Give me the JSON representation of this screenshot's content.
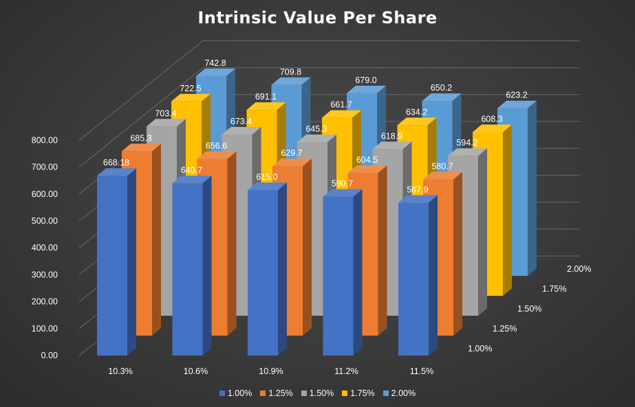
{
  "chart_data": {
    "type": "bar",
    "title": "Intrinsic Value Per Share",
    "categories": [
      "10.3%",
      "10.6%",
      "10.9%",
      "11.2%",
      "11.5%"
    ],
    "series": [
      {
        "name": "1.00%",
        "values": [
          668.18,
          640.7,
          615.0,
          590.7,
          567.9
        ],
        "labels": [
          "668.18",
          "640.7",
          "615.0",
          "590.7",
          "567.9"
        ],
        "color": "#4472c4"
      },
      {
        "name": "1.25%",
        "values": [
          685.3,
          656.6,
          629.7,
          604.5,
          580.7
        ],
        "labels": [
          "685.3",
          "656.6",
          "629.7",
          "604.5",
          "580.7"
        ],
        "color": "#ed7d31"
      },
      {
        "name": "1.50%",
        "values": [
          703.4,
          673.4,
          645.3,
          618.9,
          594.2
        ],
        "labels": [
          "703.4",
          "673.4",
          "645.3",
          "618.9",
          "594.2"
        ],
        "color": "#a5a5a5"
      },
      {
        "name": "1.75%",
        "values": [
          722.5,
          691.1,
          661.7,
          634.2,
          608.3
        ],
        "labels": [
          "722.5",
          "691.1",
          "661.7",
          "634.2",
          "608.3"
        ],
        "color": "#ffc000"
      },
      {
        "name": "2.00%",
        "values": [
          742.8,
          709.8,
          679.0,
          650.2,
          623.2
        ],
        "labels": [
          "742.8",
          "709.8",
          "679.0",
          "650.2",
          "623.2"
        ],
        "color": "#5b9bd5"
      }
    ],
    "yticks": [
      "0.00",
      "100.00",
      "200.00",
      "300.00",
      "400.00",
      "500.00",
      "600.00",
      "700.00",
      "800.00"
    ],
    "ylim": [
      0,
      800
    ],
    "grid": true,
    "legend": "bottom",
    "style": "3d-column"
  }
}
